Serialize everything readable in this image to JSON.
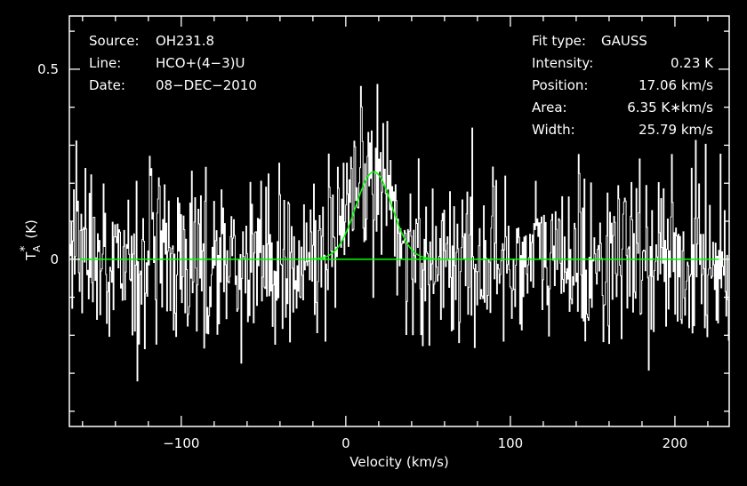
{
  "chart_data": {
    "type": "line",
    "xlabel": "Velocity (km/s)",
    "ylabel_main": "T",
    "ylabel_sup": "*",
    "ylabel_sub": "A",
    "ylabel_unit": "(K)",
    "xlim": [
      -168,
      233
    ],
    "ylim": [
      -0.44,
      0.64
    ],
    "x_ticks": [
      -100,
      0,
      100,
      200
    ],
    "x_tick_labels": [
      "−100",
      "0",
      "100",
      "200"
    ],
    "y_ticks": [
      0,
      0.5
    ],
    "y_tick_labels": [
      "0",
      "0.5"
    ],
    "grid": false,
    "spectrum": {
      "x_start": -168,
      "x_end": 233,
      "channels": 800,
      "noise_rms": 0.11,
      "color": "#ffffff"
    },
    "fit": {
      "type": "GAUSS",
      "amplitude": 0.23,
      "center": 17.06,
      "fwhm": 25.79,
      "color": "#00ff00"
    },
    "baseline": {
      "value": 0,
      "color": "#00ff00"
    },
    "fit_window": {
      "x_range": [
        -12,
        44
      ],
      "color": "#ff0000"
    }
  },
  "info_left": {
    "rows": [
      {
        "label": "Source:",
        "value": "OH231.8"
      },
      {
        "label": "Line:",
        "value": "HCO+(4−3)U"
      },
      {
        "label": "Date:",
        "value": "08−DEC−2010"
      }
    ]
  },
  "info_right": {
    "rows": [
      {
        "label": "Fit type:",
        "value": "GAUSS"
      },
      {
        "label": "Intensity:",
        "value": "0.23 K"
      },
      {
        "label": "Position:",
        "value": "17.06 km/s"
      },
      {
        "label": "Area:",
        "value": "6.35 K∗km/s"
      },
      {
        "label": "Width:",
        "value": "25.79 km/s"
      }
    ]
  }
}
